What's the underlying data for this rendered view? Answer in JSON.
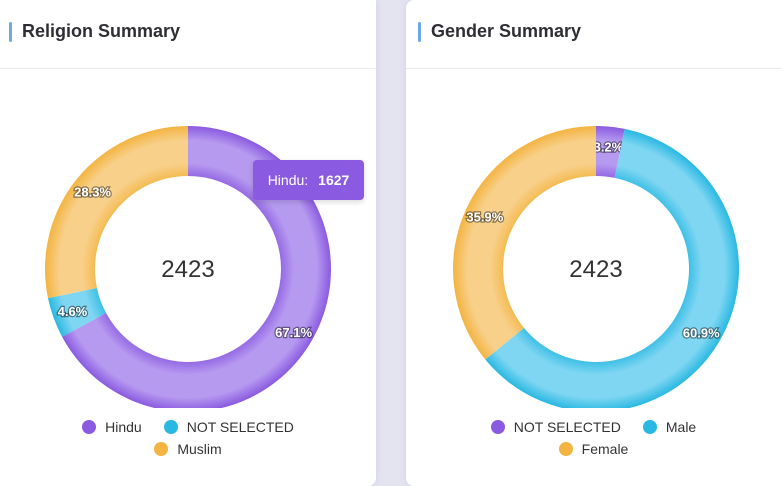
{
  "religion": {
    "title": "Religion Summary",
    "total": "2423",
    "tooltip": {
      "label": "Hindu:",
      "value": "1627",
      "color": "#8a5ae0"
    },
    "legend_rows": [
      [
        {
          "label": "Hindu",
          "color": "#8a5ae0"
        },
        {
          "label": "NOT SELECTED",
          "color": "#29b8e2"
        }
      ],
      [
        {
          "label": "Muslim",
          "color": "#f3b441"
        }
      ]
    ]
  },
  "gender": {
    "title": "Gender Summary",
    "total": "2423",
    "legend_rows": [
      [
        {
          "label": "NOT SELECTED",
          "color": "#8a5ae0"
        },
        {
          "label": "Male",
          "color": "#29b8e2"
        }
      ],
      [
        {
          "label": "Female",
          "color": "#f3b441"
        }
      ]
    ]
  },
  "chart_data": [
    {
      "type": "pie",
      "variant": "donut",
      "title": "Religion Summary",
      "center_text": "2423",
      "categories": [
        "Hindu",
        "NOT SELECTED",
        "Muslim"
      ],
      "values": [
        1627,
        111,
        685
      ],
      "percent_labels": [
        "67.1%",
        "4.6%",
        "28.3%"
      ],
      "colors": [
        "#8a5ae0",
        "#29b8e2",
        "#f3b441"
      ],
      "legend": "bottom"
    },
    {
      "type": "pie",
      "variant": "donut",
      "title": "Gender Summary",
      "center_text": "2423",
      "categories": [
        "NOT SELECTED",
        "Male",
        "Female"
      ],
      "values": [
        78,
        1475,
        870
      ],
      "percent_labels": [
        "3.2%",
        "60.9%",
        "35.9%"
      ],
      "colors": [
        "#8a5ae0",
        "#29b8e2",
        "#f3b441"
      ],
      "legend": "bottom"
    }
  ]
}
